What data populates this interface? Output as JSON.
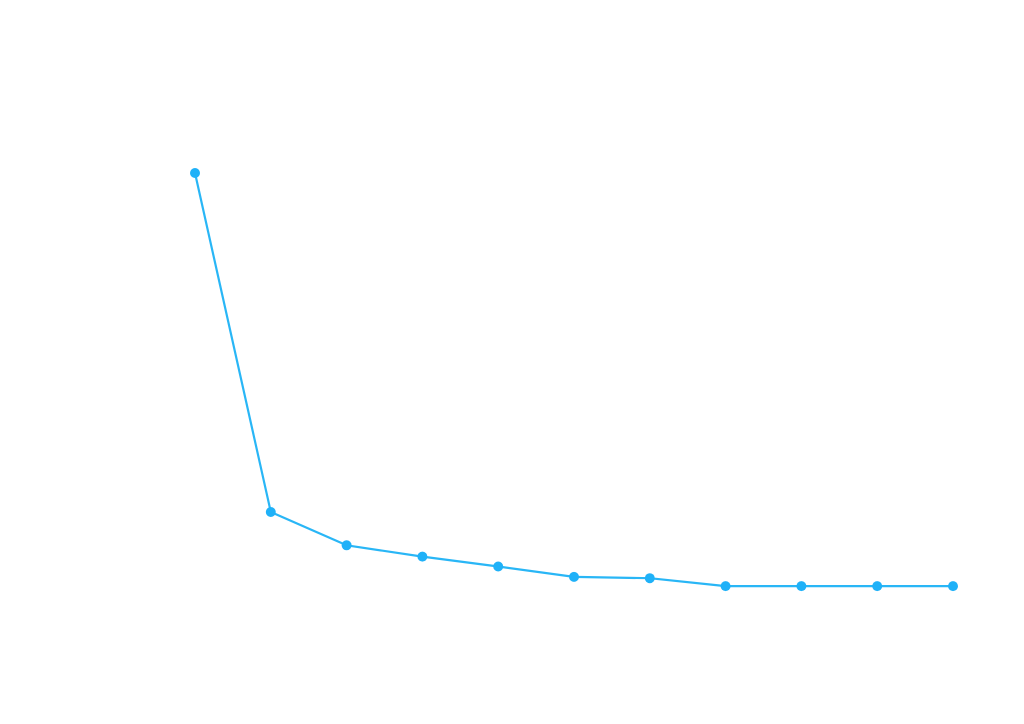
{
  "chart_data": {
    "type": "line",
    "x": [
      1,
      2,
      3,
      4,
      5,
      6,
      7,
      8,
      9,
      10,
      11
    ],
    "series": [
      {
        "values": [
          1.0,
          0.185,
          0.105,
          0.078,
          0.054,
          0.029,
          0.026,
          0.007,
          0.007,
          0.007,
          0.007
        ]
      }
    ],
    "xlim": [
      1,
      11
    ],
    "ylim": [
      0,
      1
    ],
    "grid": false,
    "axes_visible": false,
    "colors": {
      "line": "#29b6f6",
      "marker": "#1fb1f8",
      "background": "#ffffff"
    }
  }
}
